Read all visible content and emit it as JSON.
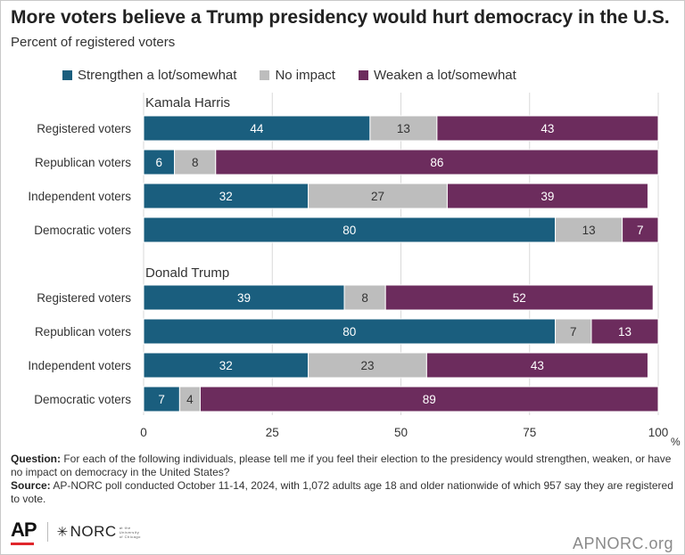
{
  "title": "More voters believe a Trump presidency would hurt democracy in the U.S.",
  "subtitle": "Percent of registered voters",
  "colors": {
    "strengthen": "#1a5e7e",
    "no_impact": "#bdbdbd",
    "weaken": "#6c2c5d",
    "gridline": "#d9d9d9",
    "label_dark": "#333333"
  },
  "legend": [
    {
      "name": "Strengthen a lot/somewhat",
      "color": "#1a5e7e"
    },
    {
      "name": "No impact",
      "color": "#bdbdbd"
    },
    {
      "name": "Weaken a lot/somewhat",
      "color": "#6c2c5d"
    }
  ],
  "chart_data": {
    "type": "bar",
    "orientation": "horizontal",
    "stacked": true,
    "xlim": [
      0,
      100
    ],
    "x_ticks": [
      0,
      25,
      50,
      75,
      100
    ],
    "x_unit": "%",
    "grid": true,
    "legend_position": "top",
    "series_names": [
      "Strengthen a lot/somewhat",
      "No impact",
      "Weaken a lot/somewhat"
    ],
    "groups": [
      {
        "name": "Kamala Harris",
        "rows": [
          {
            "label": "Registered voters",
            "values": [
              44,
              13,
              43
            ]
          },
          {
            "label": "Republican voters",
            "values": [
              6,
              8,
              86
            ]
          },
          {
            "label": "Independent voters",
            "values": [
              32,
              27,
              39
            ]
          },
          {
            "label": "Democratic voters",
            "values": [
              80,
              13,
              7
            ]
          }
        ]
      },
      {
        "name": "Donald Trump",
        "rows": [
          {
            "label": "Registered voters",
            "values": [
              39,
              8,
              52
            ]
          },
          {
            "label": "Republican voters",
            "values": [
              80,
              7,
              13
            ]
          },
          {
            "label": "Independent voters",
            "values": [
              32,
              23,
              43
            ]
          },
          {
            "label": "Democratic voters",
            "values": [
              7,
              4,
              89
            ]
          }
        ]
      }
    ]
  },
  "footer": {
    "question_label": "Question:",
    "question_text": "For each of the following individuals, please tell me if you feel their election to the presidency would strengthen, weaken, or have no impact on democracy in the United States?",
    "source_label": "Source:",
    "source_text": "AP-NORC poll conducted October 11-14, 2024, with 1,072 adults age 18 and older nationwide of which 957 say they are registered to vote."
  },
  "logos": {
    "ap": "AP",
    "norc": "NORC",
    "norc_small": "at the University of Chicago"
  },
  "site": "APNORC.org"
}
